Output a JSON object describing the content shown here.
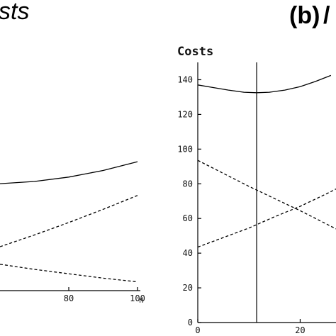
{
  "figure": {
    "panel_a_title_fragment": "sts",
    "panel_b_label": "(b)",
    "panel_b_label_fragment": "/"
  },
  "chart_data": [
    {
      "panel": "a",
      "type": "line",
      "title": "sts",
      "xlabel": "n",
      "ylabel": "",
      "x_ticks": [
        80,
        100
      ],
      "xlim_visible": [
        60,
        100
      ],
      "ylim": [
        0,
        150
      ],
      "grid": false,
      "series": [
        {
          "style": "solid",
          "x": [
            60,
            70,
            80,
            90,
            100
          ],
          "y": [
            73,
            74.5,
            77.5,
            82,
            88
          ]
        },
        {
          "style": "dashed",
          "x": [
            60,
            70,
            80,
            90,
            100
          ],
          "y": [
            30,
            38,
            46.5,
            55.5,
            65
          ]
        },
        {
          "style": "dashed",
          "x": [
            60,
            70,
            80,
            90,
            100
          ],
          "y": [
            18,
            14.5,
            11.5,
            8.5,
            6
          ]
        }
      ]
    },
    {
      "panel": "b",
      "type": "line",
      "title": "",
      "xlabel": "",
      "ylabel": "Costs",
      "y_ticks": [
        0,
        20,
        40,
        60,
        80,
        100,
        120,
        140
      ],
      "x_ticks": [
        0,
        20
      ],
      "xlim_visible": [
        0,
        27
      ],
      "ylim": [
        0,
        150
      ],
      "grid": false,
      "vertical_line_x": 11.5,
      "series": [
        {
          "style": "solid",
          "x": [
            0,
            3,
            6,
            9,
            11.5,
            14,
            17,
            20,
            23,
            26
          ],
          "y": [
            137,
            135.5,
            134,
            132.8,
            132.5,
            132.8,
            134,
            136,
            139,
            142.5
          ]
        },
        {
          "style": "dashed",
          "x": [
            0,
            5,
            10,
            15,
            20,
            25,
            27
          ],
          "y": [
            93.5,
            86,
            78.5,
            71.5,
            64.5,
            57,
            54
          ]
        },
        {
          "style": "dashed",
          "x": [
            0,
            5,
            10,
            15,
            20,
            25,
            27
          ],
          "y": [
            43.5,
            49,
            54.5,
            61,
            67,
            74,
            77
          ]
        }
      ]
    }
  ]
}
